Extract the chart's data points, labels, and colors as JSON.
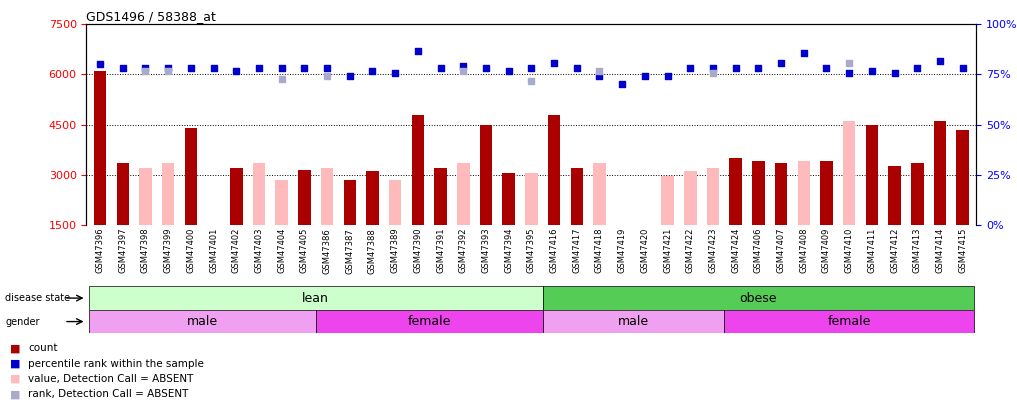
{
  "title": "GDS1496 / 58388_at",
  "samples": [
    "GSM47396",
    "GSM47397",
    "GSM47398",
    "GSM47399",
    "GSM47400",
    "GSM47401",
    "GSM47402",
    "GSM47403",
    "GSM47404",
    "GSM47405",
    "GSM47386",
    "GSM47387",
    "GSM47388",
    "GSM47389",
    "GSM47390",
    "GSM47391",
    "GSM47392",
    "GSM47393",
    "GSM47394",
    "GSM47395",
    "GSM47416",
    "GSM47417",
    "GSM47418",
    "GSM47419",
    "GSM47420",
    "GSM47421",
    "GSM47422",
    "GSM47423",
    "GSM47424",
    "GSM47406",
    "GSM47407",
    "GSM47408",
    "GSM47409",
    "GSM47410",
    "GSM47411",
    "GSM47412",
    "GSM47413",
    "GSM47414",
    "GSM47415"
  ],
  "count_values": [
    6100,
    3350,
    null,
    null,
    4400,
    null,
    3200,
    null,
    null,
    3150,
    null,
    2850,
    3100,
    null,
    4800,
    3200,
    3300,
    4500,
    3050,
    null,
    4800,
    3200,
    null,
    null,
    null,
    null,
    null,
    null,
    3500,
    3400,
    3350,
    null,
    3400,
    null,
    4500,
    3250,
    3350,
    4600,
    4350
  ],
  "absent_values": [
    null,
    null,
    3200,
    3350,
    null,
    null,
    null,
    3350,
    2850,
    null,
    3200,
    null,
    null,
    2850,
    null,
    null,
    3350,
    null,
    null,
    3050,
    null,
    null,
    3350,
    null,
    null,
    2950,
    3100,
    3200,
    null,
    null,
    null,
    3400,
    null,
    4600,
    null,
    null,
    null,
    null,
    null
  ],
  "perc_dark_left": [
    6300,
    6200,
    6200,
    6200,
    6200,
    6200,
    6100,
    6200,
    6200,
    6200,
    6200,
    5950,
    6100,
    6050,
    6700,
    6200,
    6250,
    6200,
    6100,
    6200,
    6350,
    6200,
    5950,
    5700,
    5950,
    5950,
    6200,
    6200,
    6200,
    6200,
    6350,
    6650,
    6200,
    6050,
    6100,
    6050,
    6200,
    6400,
    6200
  ],
  "perc_light_left": [
    null,
    null,
    6100,
    6100,
    null,
    null,
    null,
    null,
    5850,
    null,
    5950,
    null,
    null,
    null,
    null,
    null,
    6100,
    null,
    null,
    5800,
    null,
    null,
    6100,
    null,
    null,
    null,
    null,
    6050,
    null,
    null,
    null,
    null,
    null,
    6350,
    null,
    null,
    null,
    null,
    null
  ],
  "ylim_left": [
    1500,
    7500
  ],
  "ylim_right": [
    0,
    100
  ],
  "yticks_left": [
    1500,
    3000,
    4500,
    6000,
    7500
  ],
  "yticks_right": [
    0,
    25,
    50,
    75,
    100
  ],
  "dotted_lines": [
    3000,
    4500,
    6000
  ],
  "bar_color": "#aa0000",
  "absent_bar_color": "#ffbbbb",
  "dot_dark_color": "#0000cc",
  "dot_light_color": "#aaaacc",
  "lean_color": "#ccffcc",
  "obese_color": "#55cc55",
  "male_color": "#f0a0f0",
  "female_color": "#ee44ee",
  "lean_range": [
    0,
    19
  ],
  "obese_range": [
    20,
    38
  ],
  "male_lean_range": [
    0,
    9
  ],
  "female_lean_range": [
    10,
    19
  ],
  "male_obese_range": [
    20,
    27
  ],
  "female_obese_range": [
    28,
    38
  ]
}
